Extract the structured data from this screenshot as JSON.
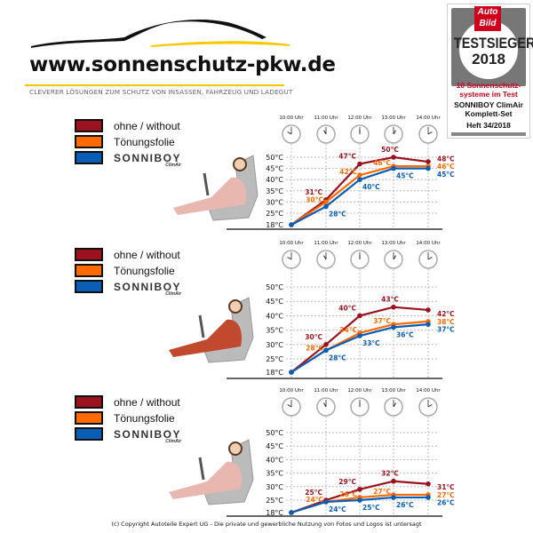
{
  "header": {
    "site_url": "www.sonnenschutz-pkw.de",
    "tagline": "CLEVERER LÖSUNGEN ZUM SCHUTZ VON INSASSEN, FAHRZEUG UND LADEGUT"
  },
  "badge": {
    "logo": "Auto Bild",
    "title": "TESTSIEGER",
    "year": "2018",
    "line1": "10 Sonnenschutz-",
    "line2": "systeme im Test",
    "line3": "SONNIBOY ClimAir",
    "line4": "Komplett-Set",
    "line5": "Heft 34/2018"
  },
  "legend": {
    "items": [
      {
        "label": "ohne / without",
        "color": "#9b111e"
      },
      {
        "label": "Tönungsfolie",
        "color": "#ff6a00"
      },
      {
        "label": "SONNIBOY",
        "sublabel": "ClimAir",
        "color": "#0a5db5",
        "is_logo": true
      }
    ]
  },
  "footer": "(c) Copyright Autoteile Expert UG - Die private und gewerbliche Nutzung von Fotos und Logos ist untersagt",
  "chart_data": [
    {
      "type": "line",
      "categories": [
        "10:00 Uhr",
        "11:00 Uhr",
        "12:00 Uhr",
        "13:00 Uhr",
        "14:00 Uhr"
      ],
      "y_tick_labels": [
        "50°C",
        "45°C",
        "40°C",
        "35°C",
        "30°C",
        "25°C",
        "18°C"
      ],
      "grid": true,
      "series": [
        {
          "name": "ohne / without",
          "color": "#9b111e",
          "values": [
            18,
            31,
            47,
            50,
            48
          ]
        },
        {
          "name": "Tönungsfolie",
          "color": "#ff6a00",
          "values": [
            18,
            30,
            42,
            46,
            46
          ]
        },
        {
          "name": "SONNIBOY",
          "color": "#0a5db5",
          "values": [
            18,
            28,
            40,
            45,
            45
          ]
        }
      ]
    },
    {
      "type": "line",
      "categories": [
        "10:00 Uhr",
        "11:00 Uhr",
        "12:00 Uhr",
        "13:00 Uhr",
        "14:00 Uhr"
      ],
      "y_tick_labels": [
        "50°C",
        "45°C",
        "40°C",
        "35°C",
        "30°C",
        "25°C",
        "18°C"
      ],
      "grid": true,
      "series": [
        {
          "name": "ohne / without",
          "color": "#9b111e",
          "values": [
            18,
            30,
            40,
            43,
            42
          ]
        },
        {
          "name": "Tönungsfolie",
          "color": "#ff6a00",
          "values": [
            18,
            28,
            34,
            37,
            38
          ]
        },
        {
          "name": "SONNIBOY",
          "color": "#0a5db5",
          "values": [
            18,
            28,
            33,
            36,
            37
          ]
        }
      ]
    },
    {
      "type": "line",
      "categories": [
        "10:00 Uhr",
        "11:00 Uhr",
        "12:00 Uhr",
        "13:00 Uhr",
        "14:00 Uhr"
      ],
      "y_tick_labels": [
        "50°C",
        "45°C",
        "40°C",
        "35°C",
        "30°C",
        "25°C",
        "18°C"
      ],
      "grid": true,
      "series": [
        {
          "name": "ohne / without",
          "color": "#9b111e",
          "values": [
            18,
            25,
            29,
            32,
            31
          ]
        },
        {
          "name": "Tönungsfolie",
          "color": "#ff6a00",
          "values": [
            18,
            24,
            26,
            27,
            27
          ]
        },
        {
          "name": "SONNIBOY",
          "color": "#0a5db5",
          "values": [
            18,
            24,
            25,
            26,
            26
          ]
        }
      ]
    }
  ]
}
